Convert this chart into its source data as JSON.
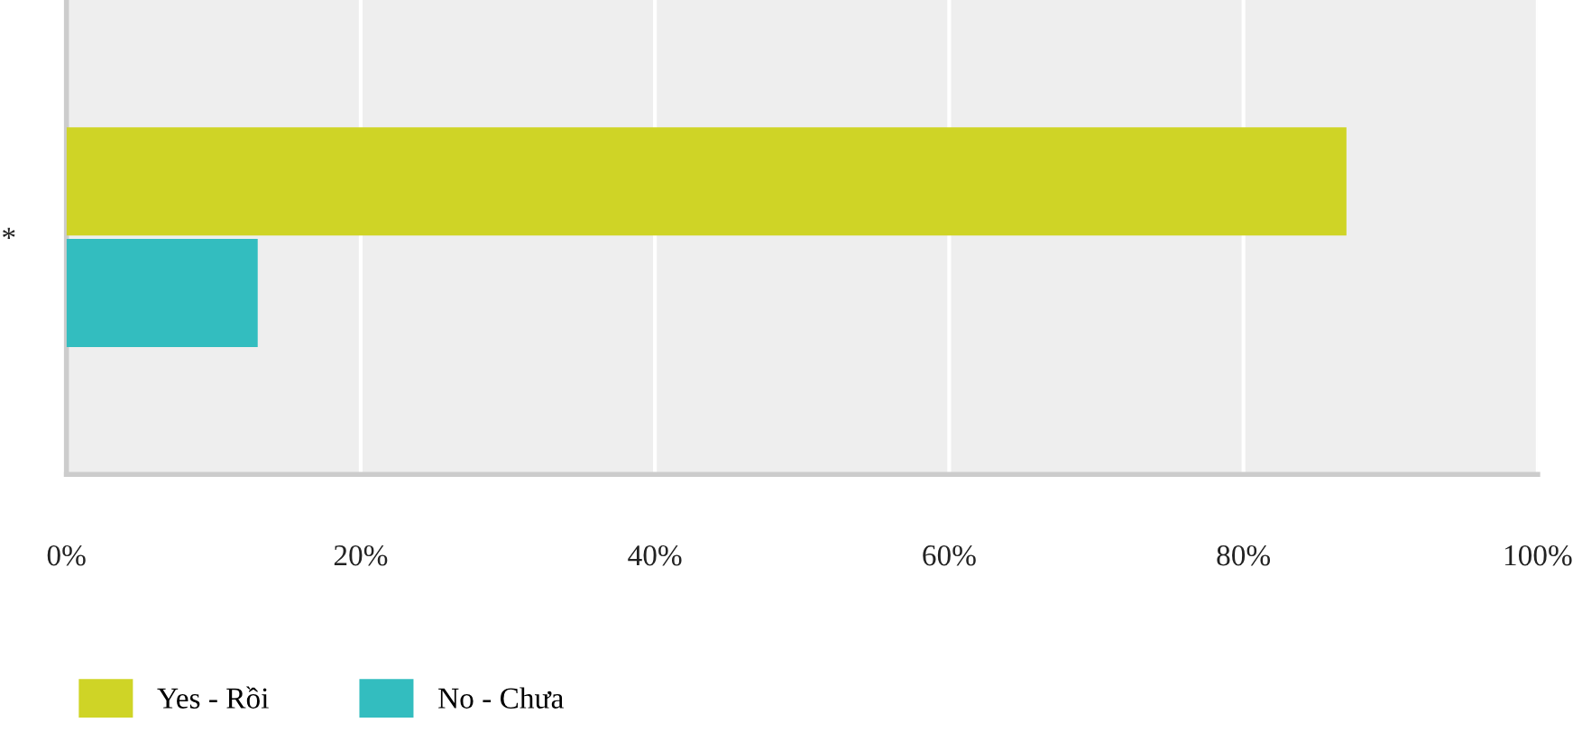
{
  "chart_data": {
    "type": "bar",
    "orientation": "horizontal",
    "categories": [
      "*"
    ],
    "series": [
      {
        "name": "Yes - Rồi",
        "color": "#cfd426",
        "values": [
          87
        ]
      },
      {
        "name": "No - Chưa",
        "color": "#33bdbf",
        "values": [
          13
        ]
      }
    ],
    "xlim": [
      0,
      100
    ],
    "xticks": [
      {
        "value": 0,
        "label": "0%"
      },
      {
        "value": 20,
        "label": "20%"
      },
      {
        "value": 40,
        "label": "40%"
      },
      {
        "value": 60,
        "label": "60%"
      },
      {
        "value": 80,
        "label": "80%"
      },
      {
        "value": 100,
        "label": "100%"
      }
    ],
    "grid": "x",
    "legend": "bottom left"
  }
}
